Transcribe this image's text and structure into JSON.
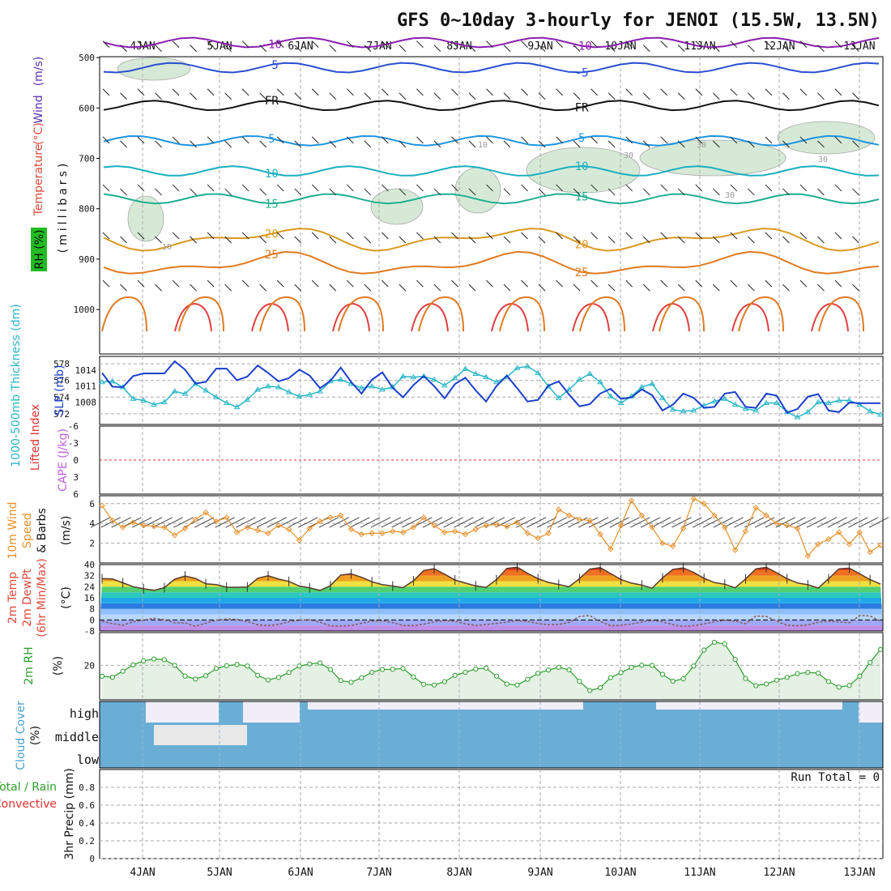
{
  "title": "GFS 0~10day 3-hourly for JENOI (15.5W, 13.5N)",
  "run_total_label": "Run Total = 0",
  "dates": [
    "4JAN",
    "5JAN",
    "6JAN",
    "7JAN",
    "8JAN",
    "9JAN",
    "10JAN",
    "11JAN",
    "12JAN",
    "13JAN"
  ],
  "colors": {
    "temp_label": "#e0483a",
    "wind_label": "#5a2fb0",
    "rh_box": "#22bb22",
    "cyan": "#2ab7c7",
    "blue": "#1a3fcc",
    "green": "#2e9e2e",
    "orange": "#e8902a",
    "red": "#e23030",
    "purple": "#c060e0",
    "cloud": "#6aaed6"
  },
  "chart_data": [
    {
      "type": "contour",
      "panel": "upper-air",
      "ylabel_parts": [
        "Wind",
        "(m/s)",
        "Temperature",
        "(°C)"
      ],
      "ylabel2": "(millibars)",
      "rh_label": "RH (%)",
      "yticks": [
        "500",
        "600",
        "700",
        "800",
        "900",
        "1000"
      ],
      "ylim": [
        450,
        1040
      ],
      "isotherms": [
        {
          "label": "-10",
          "level": 470,
          "color": "#8a1fb0"
        },
        {
          "label": "-5",
          "level": 520,
          "color": "#2a4fd0"
        },
        {
          "label": "FR",
          "level": 595,
          "color": "#111111"
        },
        {
          "label": "5",
          "level": 665,
          "color": "#1f95e0"
        },
        {
          "label": "10",
          "level": 725,
          "color": "#1ab0c0"
        },
        {
          "label": "15",
          "level": 780,
          "color": "#1fb090"
        },
        {
          "label": "20",
          "level": 860,
          "color": "#d89a20"
        },
        {
          "label": "25",
          "level": 910,
          "color": "#e07a20"
        }
      ],
      "rh_labels": [
        "10",
        "10",
        "30",
        "30",
        "30",
        "30"
      ]
    },
    {
      "type": "line",
      "panel": "thickness-slp",
      "ylabel_thickness": "1000-500mb Thickness (dm)",
      "ylabel_slp": "SLP (mb)",
      "yticks_thickness": [
        "572",
        "574",
        "576",
        "578"
      ],
      "yticks_slp": [
        "1008",
        "1011",
        "1014"
      ],
      "series": [
        {
          "name": "1000-500mb Thickness (dm)",
          "unit": "dm",
          "values": [
            575.8,
            575.9,
            575.2,
            573.8,
            573.6,
            573.1,
            573.4,
            574.7,
            574.4,
            575.6,
            574.8,
            574.0,
            573.3,
            572.8,
            573.7,
            574.9,
            575.3,
            575.2,
            574.6,
            574.1,
            574.3,
            574.7,
            575.9,
            576.1,
            575.6,
            575.1,
            575.3,
            574.9,
            575.2,
            576.5,
            576.4,
            576.5,
            576.1,
            575.4,
            576.3,
            577.4,
            576.8,
            576.4,
            575.8,
            576.4,
            577.5,
            577.7,
            576.9,
            575.3,
            573.9,
            574.9,
            576.1,
            576.8,
            575.8,
            574.1,
            573.3,
            574.1,
            575.2,
            575.6,
            573.9,
            572.5,
            572.3,
            572.4,
            573.0,
            573.5,
            573.8,
            573.1,
            572.6,
            572.4,
            573.3,
            573.3,
            572.2,
            571.6,
            572.2,
            573.4,
            573.3,
            573.6,
            573.6,
            573.1,
            572.3,
            571.9
          ]
        },
        {
          "name": "SLP (mb)",
          "unit": "mb",
          "values": [
            1013.5,
            1010.9,
            1010.8,
            1012.9,
            1013.4,
            1013.4,
            1013.4,
            1015.7,
            1014.1,
            1011.5,
            1011.8,
            1014.3,
            1014.3,
            1012.1,
            1012.8,
            1014.9,
            1013.5,
            1011.9,
            1012.5,
            1014.1,
            1013.0,
            1010.6,
            1012.0,
            1014.5,
            1011.8,
            1009.6,
            1012.2,
            1013.6,
            1010.7,
            1008.9,
            1011.2,
            1012.9,
            1011.0,
            1008.7,
            1011.4,
            1012.6,
            1010.2,
            1008.1,
            1011.0,
            1013.0,
            1010.6,
            1008.1,
            1008.4,
            1011.1,
            1011.9,
            1009.4,
            1007.2,
            1007.6,
            1009.6,
            1010.5,
            1008.6,
            1008.9,
            1010.4,
            1009.3,
            1006.4,
            1007.5,
            1009.6,
            1008.8,
            1006.9,
            1007.1,
            1009.6,
            1009.9,
            1007.1,
            1006.9,
            1009.6,
            1009.2,
            1006.0,
            1006.7,
            1009.0,
            1009.5,
            1006.4,
            1006.1,
            1007.9,
            1007.8,
            1007.8,
            1007.8
          ]
        }
      ]
    },
    {
      "type": "line",
      "panel": "instability",
      "ylabel_li": "Lifted Index",
      "ylabel_cape": "CAPE (J/kg)",
      "yticks": [
        "-6",
        "-3",
        "0",
        "3",
        "6"
      ],
      "ylim": [
        -6,
        6
      ],
      "series": [
        {
          "name": "Lifted Index",
          "values": []
        }
      ]
    },
    {
      "type": "line",
      "panel": "wind10m",
      "ylabel": "10m Wind Speed & Barbs",
      "unit": "(m/s)",
      "yticks": [
        "2",
        "4",
        "6"
      ],
      "ylim": [
        0,
        6.8
      ],
      "series": [
        {
          "name": "10m Wind Speed",
          "values": [
            5.8,
            4.3,
            3.6,
            4.1,
            3.8,
            3.7,
            3.6,
            2.8,
            3.5,
            4.4,
            5.1,
            4.2,
            4.6,
            3.1,
            3.6,
            3.3,
            3.0,
            3.8,
            3.4,
            2.3,
            3.5,
            4.2,
            4.6,
            4.8,
            3.4,
            2.9,
            3.0,
            3.0,
            3.2,
            3.1,
            3.6,
            4.6,
            3.8,
            3.1,
            3.2,
            2.9,
            3.4,
            3.8,
            3.9,
            3.7,
            4.1,
            3.0,
            2.5,
            3.0,
            5.4,
            4.8,
            4.4,
            4.3,
            2.9,
            1.4,
            3.8,
            6.3,
            4.8,
            3.6,
            2.0,
            1.7,
            3.5,
            6.5,
            6.0,
            4.8,
            3.6,
            1.3,
            3.2,
            5.6,
            4.8,
            4.0,
            3.8,
            3.5,
            0.7,
            1.9,
            2.4,
            3.1,
            1.9,
            3.1,
            1.1,
            1.8
          ]
        }
      ]
    },
    {
      "type": "area",
      "panel": "temperature",
      "ylabel": "2m Temp 2m DewPt (6hr Min/Max)",
      "unit": "(°C)",
      "yticks": [
        "-8",
        "0",
        "8",
        "16",
        "24",
        "32",
        "40"
      ],
      "ylim": [
        -8,
        40
      ],
      "series": [
        {
          "name": "2m Temp",
          "values": [
            29.8,
            29.6,
            26.8,
            24.0,
            22.5,
            21.4,
            23.3,
            29.4,
            31.7,
            30.0,
            26.1,
            25.5,
            23.6,
            23.6,
            23.8,
            30.1,
            31.9,
            29.5,
            27.8,
            24.5,
            23.2,
            21.3,
            24.8,
            32.4,
            33.3,
            30.8,
            27.6,
            25.5,
            24.5,
            23.3,
            28.3,
            35.7,
            37.0,
            33.1,
            28.9,
            26.6,
            24.6,
            23.5,
            29.1,
            37.2,
            38.1,
            33.7,
            29.8,
            27.1,
            25.6,
            23.9,
            29.9,
            36.7,
            37.8,
            33.5,
            29.2,
            26.6,
            25.2,
            22.9,
            30.4,
            36.5,
            37.6,
            34.3,
            30.1,
            27.0,
            25.8,
            23.2,
            29.6,
            36.9,
            38.0,
            34.1,
            29.8,
            26.7,
            25.4,
            23.0,
            29.7,
            36.9,
            37.4,
            33.3,
            29.1,
            25.9
          ]
        },
        {
          "name": "2m DewPt",
          "values": [
            -1.0,
            -2.7,
            -3.9,
            -1.3,
            -0.2,
            1.2,
            0.1,
            -2.1,
            -2.2,
            -4.6,
            -2.3,
            -0.2,
            0.6,
            0.4,
            -1.2,
            -3.6,
            -4.1,
            -3.3,
            -1.3,
            -0.2,
            0.1,
            -1.7,
            -4.3,
            -4.3,
            -4.0,
            -2.4,
            -0.9,
            -0.6,
            -1.9,
            -4.1,
            -4.1,
            -3.1,
            -1.4,
            -0.6,
            -0.9,
            -2.9,
            -4.0,
            -3.3,
            -2.5,
            -1.6,
            -0.5,
            -1.1,
            -2.6,
            -3.5,
            -3.3,
            -1.8,
            2.5,
            3.2,
            -1.2,
            -4.2,
            -3.9,
            -3.0,
            -1.5,
            -0.4,
            -1.3,
            -3.5,
            -4.7,
            -4.1,
            -2.9,
            -1.4,
            -0.3,
            -0.9,
            -2.8,
            2.8,
            2.6,
            -0.9,
            -3.9,
            -4.2,
            -3.6,
            -1.7,
            -1.0,
            -1.4,
            -2.1,
            3.2,
            2.9,
            -0.9
          ]
        }
      ]
    },
    {
      "type": "area",
      "panel": "rh2m",
      "ylabel": "2m RH",
      "unit": "(%)",
      "yticks": [
        "20"
      ],
      "ylim": [
        0,
        39
      ],
      "series": [
        {
          "name": "2m RH",
          "values": [
            13.7,
            13.1,
            16.6,
            20.3,
            22.6,
            23.7,
            23.3,
            20.0,
            13.8,
            12.1,
            14.0,
            18.2,
            19.8,
            20.5,
            19.6,
            14.2,
            11.5,
            13.0,
            15.9,
            19.6,
            20.8,
            21.4,
            17.6,
            11.2,
            10.2,
            12.8,
            16.0,
            17.6,
            17.7,
            18.2,
            13.3,
            9.0,
            8.6,
            10.5,
            14.2,
            16.0,
            17.9,
            18.4,
            13.7,
            9.2,
            8.6,
            11.9,
            15.4,
            17.3,
            18.9,
            17.4,
            10.7,
            5.4,
            7.0,
            12.9,
            15.8,
            18.8,
            20.1,
            20.0,
            14.8,
            10.8,
            12.2,
            19.6,
            28.9,
            33.4,
            32.4,
            23.4,
            12.4,
            8.2,
            9.2,
            11.4,
            13.0,
            15.2,
            15.9,
            15.5,
            10.6,
            7.4,
            8.3,
            13.7,
            21.7,
            29.2
          ]
        }
      ]
    },
    {
      "type": "heatmap",
      "panel": "cloud",
      "ylabel": "Cloud Cover",
      "unit": "(%)",
      "levels": [
        "high",
        "middle",
        "low"
      ]
    },
    {
      "type": "bar",
      "panel": "precip",
      "ylabel_total": "Total / Rain",
      "ylabel_conv": "Convective",
      "ylabel": "3hr Precip (mm)",
      "yticks": [
        "0",
        "0.2",
        "0.4",
        "0.6",
        "0.8"
      ],
      "ylim": [
        0,
        1.0
      ],
      "series": [
        {
          "name": "Total / Rain",
          "values": []
        },
        {
          "name": "Convective",
          "values": []
        }
      ]
    }
  ]
}
